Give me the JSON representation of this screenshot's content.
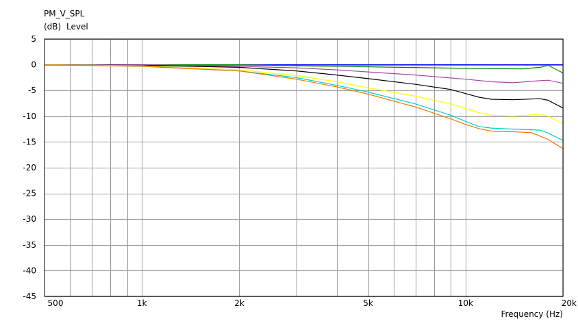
{
  "chart_data": {
    "type": "line",
    "title": "PM_V_SPL",
    "ylabel_unit": "(dB)",
    "ylabel": "Level",
    "xlabel": "Frequency (Hz)",
    "x_scale": "log",
    "xlim": [
      500,
      20000
    ],
    "ylim": [
      -45,
      5
    ],
    "grid": true,
    "x_ticks": [
      500,
      1000,
      2000,
      5000,
      10000,
      20000
    ],
    "x_tick_labels": [
      "500",
      "1k",
      "2k",
      "5k",
      "10k",
      "20k"
    ],
    "y_ticks": [
      5,
      0,
      -5,
      -10,
      -15,
      -20,
      -25,
      -30,
      -35,
      -40,
      -45
    ],
    "y_tick_labels": [
      "5",
      "0",
      "-5",
      "-10",
      "-15",
      "-20",
      "-25",
      "-30",
      "-35",
      "-40",
      "-45"
    ],
    "series": [
      {
        "color": "#0000ff",
        "x": [
          500,
          20000
        ],
        "y": [
          0,
          0
        ]
      },
      {
        "color": "#008000",
        "x": [
          500,
          1000,
          2000,
          3000,
          5000,
          8000,
          10000,
          15000,
          17000,
          18000,
          20000
        ],
        "y": [
          0,
          0,
          0,
          -0.2,
          -0.4,
          -0.6,
          -0.7,
          -0.8,
          -0.5,
          -0.1,
          -1.6
        ]
      },
      {
        "color": "#aa44aa",
        "x": [
          500,
          1000,
          2000,
          3000,
          4000,
          5000,
          7000,
          10000,
          12000,
          14000,
          17000,
          18000,
          20000
        ],
        "y": [
          0,
          0,
          -0.3,
          -0.6,
          -1.0,
          -1.4,
          -2.0,
          -2.8,
          -3.3,
          -3.5,
          -3.1,
          -3.0,
          -3.6
        ]
      },
      {
        "color": "#000000",
        "x": [
          500,
          1000,
          2000,
          3000,
          4000,
          5000,
          7000,
          9000,
          10000,
          11000,
          12000,
          14000,
          17000,
          18000,
          20000
        ],
        "y": [
          0,
          -0.1,
          -0.5,
          -1.2,
          -2.0,
          -2.7,
          -3.8,
          -4.8,
          -5.6,
          -6.3,
          -6.7,
          -6.8,
          -6.6,
          -6.9,
          -8.4
        ]
      },
      {
        "color": "#ffff00",
        "x": [
          500,
          1000,
          2000,
          3000,
          4000,
          5000,
          7000,
          9000,
          10000,
          11000,
          12000,
          14000,
          17000,
          18000,
          20000
        ],
        "y": [
          0,
          -0.2,
          -1.0,
          -2.1,
          -3.3,
          -4.5,
          -6.1,
          -7.6,
          -8.5,
          -9.3,
          -9.8,
          -10.0,
          -9.6,
          -10.0,
          -11.4
        ]
      },
      {
        "color": "#00cccc",
        "x": [
          500,
          1000,
          2000,
          3000,
          4000,
          5000,
          7000,
          9000,
          10000,
          11000,
          12000,
          14000,
          17000,
          18000,
          20000
        ],
        "y": [
          0,
          -0.3,
          -1.2,
          -2.5,
          -4.0,
          -5.3,
          -7.6,
          -9.8,
          -11.0,
          -12.0,
          -12.3,
          -12.5,
          -12.7,
          -13.3,
          -14.7
        ]
      },
      {
        "color": "#ee7700",
        "x": [
          500,
          1000,
          2000,
          3000,
          4000,
          5000,
          7000,
          9000,
          10000,
          11000,
          12000,
          14000,
          16000,
          18000,
          20000
        ],
        "y": [
          0,
          -0.3,
          -1.2,
          -2.8,
          -4.3,
          -5.7,
          -8.2,
          -10.5,
          -11.6,
          -12.4,
          -12.9,
          -13.0,
          -13.2,
          -14.5,
          -16.3
        ]
      }
    ]
  }
}
